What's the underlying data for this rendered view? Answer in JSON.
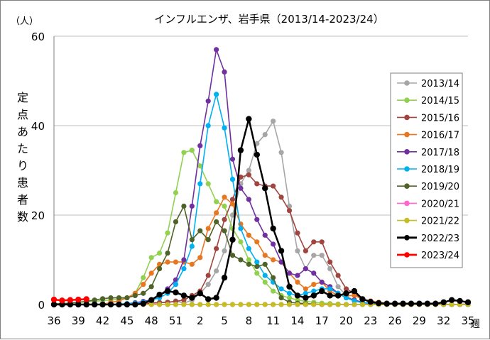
{
  "chart_data": {
    "type": "line",
    "title": "インフルエンザ、岩手県（2013/14-2023/24）",
    "unit": "（人）",
    "ylabel": "定点あたり患者数",
    "xlabel": "週",
    "ylim": [
      0,
      60
    ],
    "yticks": [
      "0",
      "20",
      "40",
      "60"
    ],
    "xticks": [
      "36",
      "39",
      "42",
      "45",
      "48",
      "51",
      "2",
      "5",
      "8",
      "11",
      "14",
      "17",
      "20",
      "23",
      "26",
      "29",
      "32",
      "35"
    ],
    "weeks": [
      36,
      37,
      38,
      39,
      40,
      41,
      42,
      43,
      44,
      45,
      46,
      47,
      48,
      49,
      50,
      51,
      52,
      1,
      2,
      3,
      4,
      5,
      6,
      7,
      8,
      9,
      10,
      11,
      12,
      13,
      14,
      15,
      16,
      17,
      18,
      19,
      20,
      21,
      22,
      23,
      24,
      25,
      26,
      27,
      28,
      29,
      30,
      31,
      32,
      33,
      34,
      35
    ],
    "legend_position": "right",
    "grid": "horizontal",
    "series": [
      {
        "name": "2013/14",
        "color": "#a6a6a6",
        "values": [
          0,
          0,
          0,
          0,
          0,
          0,
          0,
          0,
          0,
          0,
          0.2,
          0.3,
          0.4,
          0.5,
          0.5,
          0.8,
          0.3,
          1.0,
          2.5,
          4.5,
          7.5,
          12,
          20,
          27,
          30,
          36,
          38,
          41,
          34,
          22,
          12,
          8,
          11,
          11,
          8,
          4,
          2,
          0.8,
          0.4,
          0.2,
          0.1,
          0.1,
          0,
          0,
          0,
          0,
          0,
          0,
          0,
          0,
          0,
          0
        ]
      },
      {
        "name": "2014/15",
        "color": "#92d050",
        "values": [
          0.2,
          0.2,
          0.3,
          0.5,
          0.6,
          0.7,
          0.9,
          1.0,
          1.2,
          1.5,
          2.5,
          6,
          10.5,
          11.5,
          16,
          25,
          34,
          34.5,
          31,
          27,
          23,
          22,
          17,
          14,
          10,
          7,
          5,
          3,
          2,
          1.5,
          1,
          0.7,
          0.5,
          0.3,
          0.2,
          0.1,
          0,
          0,
          0,
          0,
          0,
          0,
          0,
          0,
          0,
          0,
          0,
          0,
          0,
          0,
          0,
          0
        ]
      },
      {
        "name": "2015/16",
        "color": "#a0453f",
        "values": [
          0,
          0,
          0,
          0,
          0,
          0,
          0,
          0,
          0,
          0,
          0.1,
          0.2,
          0.3,
          0.4,
          0.5,
          0.7,
          1.0,
          2.0,
          3.0,
          6.5,
          12.5,
          19,
          23.5,
          28.5,
          29,
          27,
          26.5,
          26.5,
          24,
          21,
          16,
          12,
          14,
          14,
          9.5,
          6.5,
          3.5,
          2.5,
          1.2,
          0.7,
          0.3,
          0.2,
          0,
          0,
          0,
          0,
          0,
          0,
          0,
          0,
          0,
          0
        ]
      },
      {
        "name": "2016/17",
        "color": "#e87722",
        "values": [
          0,
          0,
          0,
          0,
          0,
          0,
          0,
          0.5,
          0.8,
          1.5,
          2.5,
          4.5,
          7,
          9,
          9.5,
          9.5,
          9.5,
          9,
          10.5,
          17,
          20.5,
          24,
          22.5,
          18,
          15.5,
          14,
          11,
          10,
          9.5,
          7,
          5,
          3.5,
          4.5,
          5,
          3,
          2,
          2,
          2,
          1.2,
          0.8,
          0.5,
          0.3,
          0.2,
          0.1,
          0,
          0,
          0,
          0,
          0,
          0,
          0,
          0
        ]
      },
      {
        "name": "2017/18",
        "color": "#7030a0",
        "values": [
          0,
          0,
          0,
          0,
          0,
          0,
          0,
          0,
          0,
          0.2,
          0.4,
          0.7,
          1.0,
          2.0,
          3.5,
          5.5,
          10,
          22,
          35.5,
          45.5,
          57,
          52,
          32.5,
          26,
          23.5,
          19,
          15.5,
          13.5,
          9.5,
          7,
          6.5,
          8,
          7,
          5,
          4,
          2.5,
          1.5,
          1.0,
          0.5,
          0.2,
          0.1,
          0,
          0,
          0,
          0,
          0,
          0,
          0,
          0,
          0,
          0,
          0
        ]
      },
      {
        "name": "2018/19",
        "color": "#00b0f0",
        "values": [
          0,
          0,
          0,
          0,
          0,
          0,
          0,
          0,
          0.1,
          0.2,
          0.3,
          0.5,
          1.0,
          1.5,
          2.5,
          4.5,
          8,
          13,
          27,
          40,
          47,
          39.5,
          28,
          17,
          12.5,
          9.5,
          6.5,
          5,
          3.5,
          2.5,
          2,
          2.5,
          3,
          3.5,
          3.5,
          2.5,
          1.5,
          0.8,
          0.4,
          0.2,
          0,
          0,
          0,
          0,
          0,
          0,
          0,
          0,
          0,
          0,
          0,
          0
        ]
      },
      {
        "name": "2019/20",
        "color": "#4f6228",
        "values": [
          0.1,
          0.2,
          0.3,
          0.5,
          0.7,
          1.0,
          1.3,
          1.5,
          1.5,
          1.5,
          2,
          2.5,
          4,
          8,
          11.5,
          18.5,
          22,
          14.5,
          16.5,
          14.5,
          18.5,
          16.5,
          11,
          10,
          9,
          8.5,
          9,
          6,
          1.5,
          0.5,
          0.3,
          0.2,
          0.1,
          0,
          0,
          0,
          0,
          0,
          0,
          0,
          0,
          0,
          0,
          0,
          0,
          0,
          0,
          0,
          0,
          0,
          0,
          0
        ]
      },
      {
        "name": "2020/21",
        "color": "#ff66cc",
        "values": [
          0,
          0,
          0,
          0,
          0,
          0,
          0,
          0,
          0,
          0,
          0,
          0,
          0,
          0,
          0,
          0,
          0,
          0,
          0,
          0,
          0,
          0,
          0,
          0,
          0,
          0,
          0,
          0,
          0,
          0,
          0,
          0,
          0,
          0,
          0,
          0,
          0,
          0,
          0,
          0,
          0,
          0,
          0,
          0,
          0,
          0,
          0,
          0,
          0,
          0,
          0,
          0.2
        ]
      },
      {
        "name": "2021/22",
        "color": "#c4bd25",
        "values": [
          0,
          0,
          0,
          0,
          0,
          0,
          0,
          0,
          0,
          0,
          0,
          0,
          0,
          0,
          0,
          0,
          0,
          0,
          0,
          0,
          0,
          0,
          0,
          0,
          0,
          0,
          0,
          0,
          0,
          0,
          0,
          0,
          0,
          0,
          0,
          0,
          0,
          0,
          0,
          0,
          0,
          0,
          0,
          0,
          0,
          0,
          0,
          0,
          0,
          0,
          0,
          0
        ]
      },
      {
        "name": "2022/23",
        "color": "#000000",
        "values": [
          0,
          0,
          0,
          0,
          0,
          0,
          0,
          0,
          0,
          0,
          0,
          0.2,
          1.0,
          2.2,
          3,
          2.7,
          2,
          1.5,
          2.5,
          1.2,
          1.5,
          6,
          14.5,
          34.5,
          41.5,
          33.5,
          26,
          17,
          12,
          4,
          2,
          1.5,
          2,
          3,
          2,
          2,
          2.5,
          3,
          1.2,
          0.6,
          0.3,
          0.2,
          0.2,
          0.2,
          0.2,
          0.2,
          0.2,
          0.2,
          0.5,
          1,
          0.8,
          0.5
        ]
      },
      {
        "name": "2023/24",
        "color": "#ff0000",
        "values": [
          1.1,
          0.9,
          1.0,
          1.1,
          1.2
        ]
      }
    ]
  }
}
